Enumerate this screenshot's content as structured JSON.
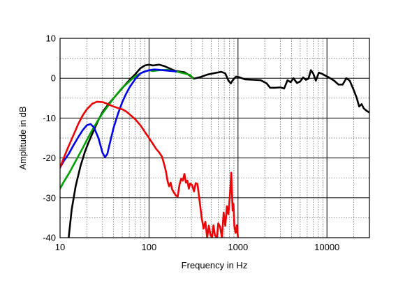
{
  "chart_data": {
    "type": "line",
    "title": "",
    "xlabel": "Frequency in Hz",
    "ylabel": "Amplitude in dB",
    "x_scale": "log",
    "xlim": [
      10,
      30000
    ],
    "ylim": [
      -40,
      10
    ],
    "grid": true,
    "x_ticks": [
      {
        "value": 10,
        "label": "10"
      },
      {
        "value": 100,
        "label": "100"
      },
      {
        "value": 1000,
        "label": "1000"
      },
      {
        "value": 10000,
        "label": "10000"
      }
    ],
    "y_ticks": [
      {
        "value": 10,
        "label": "10"
      },
      {
        "value": 0,
        "label": "0"
      },
      {
        "value": -10,
        "label": "-10"
      },
      {
        "value": -20,
        "label": "-20"
      },
      {
        "value": -30,
        "label": "-30"
      },
      {
        "value": -40,
        "label": "-40"
      }
    ],
    "series": [
      {
        "color": "#000000",
        "points": [
          [
            12.5,
            -40
          ],
          [
            13.5,
            -33
          ],
          [
            15,
            -27
          ],
          [
            17,
            -22
          ],
          [
            19,
            -18.5
          ],
          [
            21,
            -16
          ],
          [
            24,
            -13
          ],
          [
            27,
            -10.5
          ],
          [
            30,
            -8.5
          ],
          [
            35,
            -6.5
          ],
          [
            40,
            -5
          ],
          [
            50,
            -2.5
          ],
          [
            60,
            -0.5
          ],
          [
            70,
            1
          ],
          [
            80,
            2.5
          ],
          [
            90,
            3.2
          ],
          [
            100,
            3.4
          ],
          [
            110,
            3.2
          ],
          [
            130,
            3.4
          ],
          [
            150,
            3
          ],
          [
            180,
            2.2
          ],
          [
            200,
            1.8
          ],
          [
            250,
            1.5
          ],
          [
            290,
            0.6
          ],
          [
            320,
            -0.1
          ],
          [
            380,
            0.3
          ],
          [
            450,
            0.9
          ],
          [
            550,
            1.3
          ],
          [
            650,
            1.6
          ],
          [
            720,
            1.2
          ],
          [
            780,
            -0.6
          ],
          [
            830,
            -1.3
          ],
          [
            880,
            -0.4
          ],
          [
            950,
            0.4
          ],
          [
            1050,
            0.2
          ],
          [
            1200,
            -0.3
          ],
          [
            1500,
            -0.4
          ],
          [
            1800,
            -0.5
          ],
          [
            2100,
            -1.3
          ],
          [
            2300,
            -2.4
          ],
          [
            2600,
            -2.4
          ],
          [
            3000,
            -2.3
          ],
          [
            3300,
            -2.6
          ],
          [
            3600,
            -0.5
          ],
          [
            3900,
            -1
          ],
          [
            4200,
            0
          ],
          [
            4600,
            -1.2
          ],
          [
            5000,
            -0.8
          ],
          [
            5400,
            0.2
          ],
          [
            5800,
            -0.4
          ],
          [
            6200,
            -0.1
          ],
          [
            6600,
            2
          ],
          [
            7000,
            1.2
          ],
          [
            7500,
            -0.6
          ],
          [
            8100,
            1.4
          ],
          [
            8800,
            1.1
          ],
          [
            9500,
            0.7
          ],
          [
            10500,
            0.2
          ],
          [
            12000,
            -0.6
          ],
          [
            13500,
            -1.6
          ],
          [
            15000,
            -1.6
          ],
          [
            16500,
            0
          ],
          [
            18000,
            -0.6
          ],
          [
            20000,
            -3
          ],
          [
            21500,
            -4.8
          ],
          [
            23000,
            -7.1
          ],
          [
            24500,
            -6.5
          ],
          [
            26000,
            -7.6
          ],
          [
            28000,
            -8.2
          ],
          [
            30000,
            -8.6
          ]
        ]
      },
      {
        "color": "#00a000",
        "points": [
          [
            10,
            -27.7
          ],
          [
            11,
            -26
          ],
          [
            12.5,
            -24
          ],
          [
            14,
            -22
          ],
          [
            16,
            -19.6
          ],
          [
            18,
            -17.5
          ],
          [
            20,
            -15.5
          ],
          [
            23,
            -13
          ],
          [
            26,
            -11
          ],
          [
            30,
            -8.8
          ],
          [
            35,
            -6.8
          ],
          [
            40,
            -5
          ],
          [
            50,
            -2.4
          ],
          [
            60,
            -0.8
          ],
          [
            70,
            0.5
          ],
          [
            80,
            1.2
          ],
          [
            90,
            1.7
          ],
          [
            100,
            2
          ],
          [
            110,
            1.8
          ],
          [
            130,
            2
          ],
          [
            160,
            2.1
          ],
          [
            200,
            1.7
          ],
          [
            240,
            1.3
          ],
          [
            290,
            0.8
          ],
          [
            310,
            0
          ]
        ]
      },
      {
        "color": "#0000ee",
        "points": [
          [
            10,
            -22.4
          ],
          [
            11,
            -20.8
          ],
          [
            12.5,
            -19
          ],
          [
            14,
            -17
          ],
          [
            16,
            -14.8
          ],
          [
            18,
            -13
          ],
          [
            20,
            -11.8
          ],
          [
            22,
            -11.5
          ],
          [
            24,
            -12.3
          ],
          [
            27,
            -15
          ],
          [
            30,
            -18.7
          ],
          [
            32,
            -19.8
          ],
          [
            34,
            -19
          ],
          [
            37,
            -15.5
          ],
          [
            40,
            -12.4
          ],
          [
            45,
            -8.8
          ],
          [
            50,
            -6
          ],
          [
            55,
            -4
          ],
          [
            60,
            -2.4
          ],
          [
            70,
            -0.2
          ],
          [
            80,
            1.2
          ],
          [
            90,
            1.7
          ],
          [
            100,
            2
          ],
          [
            115,
            2.2
          ],
          [
            130,
            2.1
          ],
          [
            160,
            1.9
          ],
          [
            200,
            1.7
          ]
        ]
      },
      {
        "color": "#ee0000",
        "points": [
          [
            10,
            -22.5
          ],
          [
            11,
            -20
          ],
          [
            12.5,
            -17
          ],
          [
            14,
            -14.5
          ],
          [
            16,
            -11.5
          ],
          [
            18,
            -9.3
          ],
          [
            20,
            -7.8
          ],
          [
            23,
            -6.4
          ],
          [
            26,
            -5.9
          ],
          [
            30,
            -6
          ],
          [
            33,
            -6.3
          ],
          [
            36,
            -6.7
          ],
          [
            40,
            -7.1
          ],
          [
            45,
            -7.5
          ],
          [
            50,
            -7.8
          ],
          [
            55,
            -8.3
          ],
          [
            60,
            -9
          ],
          [
            70,
            -10.3
          ],
          [
            80,
            -11.8
          ],
          [
            90,
            -13.5
          ],
          [
            100,
            -15
          ],
          [
            110,
            -16.4
          ],
          [
            120,
            -17.7
          ],
          [
            130,
            -18.6
          ],
          [
            140,
            -19.7
          ],
          [
            148,
            -21.6
          ],
          [
            155,
            -23.4
          ],
          [
            162,
            -25.9
          ],
          [
            168,
            -27.1
          ],
          [
            175,
            -26.2
          ],
          [
            182,
            -27.9
          ],
          [
            192,
            -28.8
          ],
          [
            200,
            -29.4
          ],
          [
            210,
            -29.7
          ],
          [
            220,
            -26.7
          ],
          [
            230,
            -25.2
          ],
          [
            240,
            -25.7
          ],
          [
            250,
            -24
          ],
          [
            260,
            -26.2
          ],
          [
            270,
            -25.7
          ],
          [
            280,
            -27.7
          ],
          [
            290,
            -26.4
          ],
          [
            305,
            -26.8
          ],
          [
            320,
            -28.4
          ],
          [
            335,
            -26.3
          ],
          [
            350,
            -26.5
          ],
          [
            370,
            -30.7
          ],
          [
            390,
            -34.9
          ],
          [
            410,
            -37.7
          ],
          [
            430,
            -36
          ],
          [
            450,
            -40
          ],
          [
            470,
            -37
          ],
          [
            490,
            -39.3
          ],
          [
            510,
            -40
          ],
          [
            530,
            -36.9
          ],
          [
            550,
            -39.4
          ],
          [
            580,
            -40
          ],
          [
            600,
            -36.4
          ],
          [
            630,
            -37.3
          ],
          [
            660,
            -40
          ],
          [
            690,
            -33.7
          ],
          [
            720,
            -37
          ],
          [
            750,
            -32.1
          ],
          [
            780,
            -34.1
          ],
          [
            810,
            -29.6
          ],
          [
            840,
            -23.7
          ],
          [
            870,
            -33.2
          ],
          [
            890,
            -31.5
          ],
          [
            910,
            -37.2
          ],
          [
            940,
            -38.8
          ],
          [
            970,
            -36.9
          ],
          [
            1000,
            -40
          ]
        ]
      }
    ]
  }
}
